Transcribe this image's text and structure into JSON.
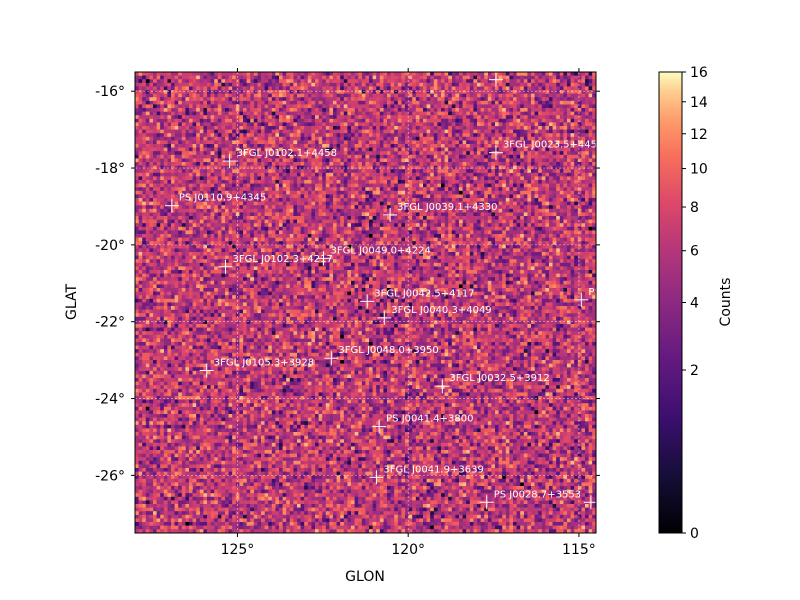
{
  "chart_data": {
    "type": "heatmap",
    "title": "",
    "xlabel": "GLON",
    "ylabel": "GLAT",
    "xlim": [
      128.0,
      114.5
    ],
    "ylim": [
      -27.5,
      -15.5
    ],
    "x_ticks": [
      {
        "value": 125,
        "label": "125°"
      },
      {
        "value": 120,
        "label": "120°"
      },
      {
        "value": 115,
        "label": "115°"
      }
    ],
    "y_ticks": [
      {
        "value": -16,
        "label": "-16°"
      },
      {
        "value": -18,
        "label": "-18°"
      },
      {
        "value": -20,
        "label": "-20°"
      },
      {
        "value": -22,
        "label": "-22°"
      },
      {
        "value": -24,
        "label": "-24°"
      },
      {
        "value": -26,
        "label": "-26°"
      }
    ],
    "grid": true,
    "colormap": "magma",
    "colorbar": {
      "label": "Counts",
      "range": [
        0,
        16
      ],
      "ticks": [
        0,
        2,
        4,
        6,
        8,
        10,
        12,
        14,
        16
      ],
      "tick_labels": [
        "0",
        "2",
        "4",
        "6",
        "8",
        "10",
        "12",
        "14",
        "16"
      ]
    },
    "sources": [
      {
        "name": "3FGL J0102.1+4458",
        "glon": 125.23,
        "glat": -17.82
      },
      {
        "name": "3FGL J0023.5+445",
        "glon": 117.43,
        "glat": -17.6
      },
      {
        "name": "PS J0110.9+4345",
        "glon": 126.92,
        "glat": -18.98
      },
      {
        "name": "3FGL J0039.1+4330",
        "glon": 120.53,
        "glat": -19.22
      },
      {
        "name": "3FGL J0049.0+4224",
        "glon": 122.48,
        "glat": -20.35
      },
      {
        "name": "3FGL J0102.3+4217",
        "glon": 125.35,
        "glat": -20.57
      },
      {
        "name": "3FGL J0042.5+4117",
        "glon": 121.2,
        "glat": -21.47
      },
      {
        "name": "PS",
        "glon": 114.93,
        "glat": -21.43
      },
      {
        "name": "3FGL J0040.3+4049",
        "glon": 120.7,
        "glat": -21.9
      },
      {
        "name": "3FGL J0048.0+3950",
        "glon": 122.25,
        "glat": -22.95
      },
      {
        "name": "3FGL J0105.3+3928",
        "glon": 125.9,
        "glat": -23.27
      },
      {
        "name": "3FGL J0032.5+3912",
        "glon": 119.0,
        "glat": -23.68
      },
      {
        "name": "PS J0041.4+3800",
        "glon": 120.85,
        "glat": -24.73
      },
      {
        "name": "3FGL J0041.9+3639",
        "glon": 120.93,
        "glat": -26.05
      },
      {
        "name": "PS J0028.7+3553",
        "glon": 117.7,
        "glat": -26.7
      },
      {
        "name": "",
        "glon": 114.65,
        "glat": -26.7
      },
      {
        "name": "",
        "glon": 117.43,
        "glat": -15.7
      }
    ]
  }
}
